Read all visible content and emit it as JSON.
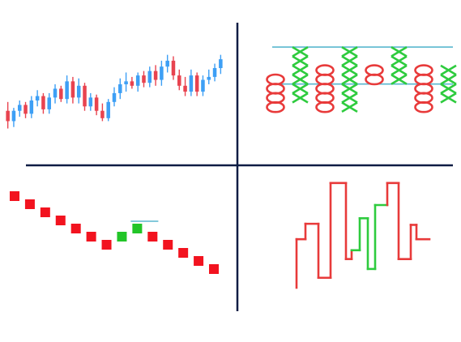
{
  "colors": {
    "bull": "#3d9ff5",
    "bear": "#e8434f",
    "divider": "#0d1c44",
    "pnf_x": "#2ecb3e",
    "pnf_o": "#e83a3a",
    "renko_up": "#22c528",
    "renko_down": "#f2131f",
    "guide": "#5ab7cf"
  },
  "chart_data": [
    {
      "id": "candlestick",
      "type": "candlestick",
      "title": "",
      "candles": [
        {
          "o": 40,
          "h": 46,
          "l": 28,
          "c": 33
        },
        {
          "o": 33,
          "h": 42,
          "l": 29,
          "c": 40
        },
        {
          "o": 40,
          "h": 47,
          "l": 36,
          "c": 44
        },
        {
          "o": 44,
          "h": 46,
          "l": 35,
          "c": 38
        },
        {
          "o": 38,
          "h": 50,
          "l": 35,
          "c": 47
        },
        {
          "o": 47,
          "h": 54,
          "l": 43,
          "c": 50
        },
        {
          "o": 50,
          "h": 52,
          "l": 38,
          "c": 41
        },
        {
          "o": 41,
          "h": 52,
          "l": 38,
          "c": 49
        },
        {
          "o": 49,
          "h": 58,
          "l": 45,
          "c": 55
        },
        {
          "o": 55,
          "h": 57,
          "l": 46,
          "c": 48
        },
        {
          "o": 48,
          "h": 64,
          "l": 45,
          "c": 60
        },
        {
          "o": 60,
          "h": 63,
          "l": 45,
          "c": 49
        },
        {
          "o": 49,
          "h": 62,
          "l": 45,
          "c": 57
        },
        {
          "o": 57,
          "h": 59,
          "l": 40,
          "c": 43
        },
        {
          "o": 43,
          "h": 52,
          "l": 40,
          "c": 49
        },
        {
          "o": 49,
          "h": 51,
          "l": 37,
          "c": 40
        },
        {
          "o": 40,
          "h": 45,
          "l": 33,
          "c": 35
        },
        {
          "o": 35,
          "h": 48,
          "l": 33,
          "c": 46
        },
        {
          "o": 46,
          "h": 56,
          "l": 43,
          "c": 52
        },
        {
          "o": 52,
          "h": 62,
          "l": 48,
          "c": 58
        },
        {
          "o": 58,
          "h": 66,
          "l": 53,
          "c": 60
        },
        {
          "o": 60,
          "h": 63,
          "l": 55,
          "c": 57
        },
        {
          "o": 57,
          "h": 66,
          "l": 53,
          "c": 64
        },
        {
          "o": 64,
          "h": 67,
          "l": 56,
          "c": 59
        },
        {
          "o": 59,
          "h": 70,
          "l": 56,
          "c": 67
        },
        {
          "o": 67,
          "h": 71,
          "l": 57,
          "c": 61
        },
        {
          "o": 61,
          "h": 74,
          "l": 57,
          "c": 70
        },
        {
          "o": 70,
          "h": 78,
          "l": 66,
          "c": 74
        },
        {
          "o": 74,
          "h": 77,
          "l": 61,
          "c": 64
        },
        {
          "o": 64,
          "h": 68,
          "l": 54,
          "c": 57
        },
        {
          "o": 57,
          "h": 63,
          "l": 50,
          "c": 53
        },
        {
          "o": 53,
          "h": 68,
          "l": 50,
          "c": 64
        },
        {
          "o": 64,
          "h": 66,
          "l": 50,
          "c": 53
        },
        {
          "o": 53,
          "h": 64,
          "l": 50,
          "c": 61
        },
        {
          "o": 61,
          "h": 68,
          "l": 58,
          "c": 63
        },
        {
          "o": 63,
          "h": 72,
          "l": 60,
          "c": 69
        },
        {
          "o": 69,
          "h": 78,
          "l": 65,
          "c": 75
        }
      ],
      "ylim": [
        25,
        80
      ]
    },
    {
      "id": "point_and_figure",
      "type": "point_and_figure",
      "title": "",
      "columns": [
        {
          "kind": "O",
          "from": 3,
          "to": 6
        },
        {
          "kind": "X",
          "from": 4,
          "to": 9
        },
        {
          "kind": "O",
          "from": 3,
          "to": 7
        },
        {
          "kind": "X",
          "from": 3,
          "to": 9
        },
        {
          "kind": "O",
          "from": 6,
          "to": 7
        },
        {
          "kind": "X",
          "from": 6,
          "to": 9
        },
        {
          "kind": "O",
          "from": 3,
          "to": 7
        },
        {
          "kind": "X",
          "from": 4,
          "to": 7
        }
      ],
      "rows": 9,
      "reference_lines": [
        9.5,
        5.5
      ]
    },
    {
      "id": "renko",
      "type": "renko",
      "title": "",
      "bricks": [
        {
          "dir": "down",
          "level": 12
        },
        {
          "dir": "down",
          "level": 11
        },
        {
          "dir": "down",
          "level": 10
        },
        {
          "dir": "down",
          "level": 9
        },
        {
          "dir": "down",
          "level": 8
        },
        {
          "dir": "down",
          "level": 7
        },
        {
          "dir": "down",
          "level": 6
        },
        {
          "dir": "up",
          "level": 7
        },
        {
          "dir": "up",
          "level": 8
        },
        {
          "dir": "down",
          "level": 7
        },
        {
          "dir": "down",
          "level": 6
        },
        {
          "dir": "down",
          "level": 5
        },
        {
          "dir": "down",
          "level": 4
        },
        {
          "dir": "down",
          "level": 3
        }
      ],
      "ylim": [
        2,
        13
      ]
    },
    {
      "id": "kagi",
      "type": "kagi",
      "title": "",
      "segments": [
        {
          "x": 0,
          "y": 0,
          "thick": false
        },
        {
          "x": 0,
          "y": 44,
          "thick": false
        },
        {
          "x": 11,
          "y": 44,
          "thick": false
        },
        {
          "x": 11,
          "y": 58,
          "thick": false
        },
        {
          "x": 27,
          "y": 58,
          "thick": false
        },
        {
          "x": 27,
          "y": 9,
          "thick": false
        },
        {
          "x": 42,
          "y": 9,
          "thick": false
        },
        {
          "x": 42,
          "y": 95,
          "thick": false
        },
        {
          "x": 61,
          "y": 95,
          "thick": false
        },
        {
          "x": 61,
          "y": 26,
          "thick": false
        },
        {
          "x": 68,
          "y": 26,
          "thick": false
        },
        {
          "x": 68,
          "y": 34,
          "thick": true
        },
        {
          "x": 78,
          "y": 34,
          "thick": true
        },
        {
          "x": 78,
          "y": 63,
          "thick": true
        },
        {
          "x": 88,
          "y": 63,
          "thick": true
        },
        {
          "x": 88,
          "y": 17,
          "thick": true
        },
        {
          "x": 97,
          "y": 17,
          "thick": true
        },
        {
          "x": 97,
          "y": 75,
          "thick": true
        },
        {
          "x": 112,
          "y": 75,
          "thick": true
        },
        {
          "x": 112,
          "y": 95,
          "thick": false
        },
        {
          "x": 126,
          "y": 95,
          "thick": false
        },
        {
          "x": 126,
          "y": 26,
          "thick": false
        },
        {
          "x": 141,
          "y": 26,
          "thick": false
        },
        {
          "x": 141,
          "y": 57,
          "thick": false
        },
        {
          "x": 148,
          "y": 57,
          "thick": false
        },
        {
          "x": 148,
          "y": 44,
          "thick": false
        },
        {
          "x": 164,
          "y": 44,
          "thick": false
        }
      ],
      "ylim": [
        0,
        100
      ]
    }
  ]
}
